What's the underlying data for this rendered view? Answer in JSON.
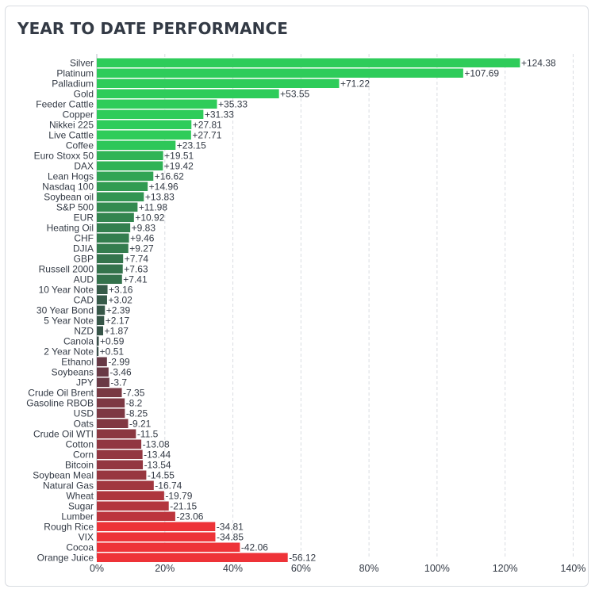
{
  "title": "YEAR TO DATE PERFORMANCE",
  "chart_data": {
    "type": "bar",
    "orientation": "horizontal",
    "title": "YEAR TO DATE PERFORMANCE",
    "xlabel": "",
    "ylabel": "",
    "xlim": [
      0,
      140
    ],
    "xticks": [
      0,
      20,
      40,
      60,
      80,
      100,
      120,
      140
    ],
    "xtick_labels": [
      "0%",
      "20%",
      "40%",
      "60%",
      "80%",
      "100%",
      "120%",
      "140%"
    ],
    "bars_extend_from_zero_by_magnitude": true,
    "grid": "vertical dashed",
    "categories": [
      "Silver",
      "Platinum",
      "Palladium",
      "Gold",
      "Feeder Cattle",
      "Copper",
      "Nikkei 225",
      "Live Cattle",
      "Coffee",
      "Euro Stoxx 50",
      "DAX",
      "Lean Hogs",
      "Nasdaq 100",
      "Soybean oil",
      "S&P 500",
      "EUR",
      "Heating Oil",
      "CHF",
      "DJIA",
      "GBP",
      "Russell 2000",
      "AUD",
      "10 Year Note",
      "CAD",
      "30 Year Bond",
      "5 Year Note",
      "NZD",
      "Canola",
      "2 Year Note",
      "Ethanol",
      "Soybeans",
      "JPY",
      "Crude Oil Brent",
      "Gasoline RBOB",
      "USD",
      "Oats",
      "Crude Oil WTI",
      "Cotton",
      "Corn",
      "Bitcoin",
      "Soybean Meal",
      "Natural Gas",
      "Wheat",
      "Sugar",
      "Lumber",
      "Rough Rice",
      "VIX",
      "Cocoa",
      "Orange Juice"
    ],
    "values": [
      124.38,
      107.69,
      71.22,
      53.55,
      35.33,
      31.33,
      27.81,
      27.71,
      23.15,
      19.51,
      19.42,
      16.62,
      14.96,
      13.83,
      11.98,
      10.92,
      9.83,
      9.46,
      9.27,
      7.74,
      7.63,
      7.41,
      3.16,
      3.02,
      2.39,
      2.17,
      1.87,
      0.59,
      0.51,
      -2.99,
      -3.46,
      -3.7,
      -7.35,
      -8.2,
      -8.25,
      -9.21,
      -11.5,
      -13.08,
      -13.44,
      -13.54,
      -14.55,
      -16.74,
      -19.79,
      -21.15,
      -23.06,
      -34.81,
      -34.85,
      -42.06,
      -56.12
    ],
    "value_labels": [
      "+124.38",
      "+107.69",
      "+71.22",
      "+53.55",
      "+35.33",
      "+31.33",
      "+27.81",
      "+27.71",
      "+23.15",
      "+19.51",
      "+19.42",
      "+16.62",
      "+14.96",
      "+13.83",
      "+11.98",
      "+10.92",
      "+9.83",
      "+9.46",
      "+9.27",
      "+7.74",
      "+7.63",
      "+7.41",
      "+3.16",
      "+3.02",
      "+2.39",
      "+2.17",
      "+1.87",
      "+0.59",
      "+0.51",
      "-2.99",
      "-3.46",
      "-3.7",
      "-7.35",
      "-8.2",
      "-8.25",
      "-9.21",
      "-11.5",
      "-13.08",
      "-13.44",
      "-13.54",
      "-14.55",
      "-16.74",
      "-19.79",
      "-21.15",
      "-23.06",
      "-34.81",
      "-34.85",
      "-42.06",
      "-56.12"
    ],
    "colors": {
      "strong_positive": "#2ecc5a",
      "weak_positive": "#374a46",
      "weak_negative": "#5a3a46",
      "strong_negative": "#ee3338",
      "grid": "#d9dce1",
      "text": "#333a45"
    }
  }
}
